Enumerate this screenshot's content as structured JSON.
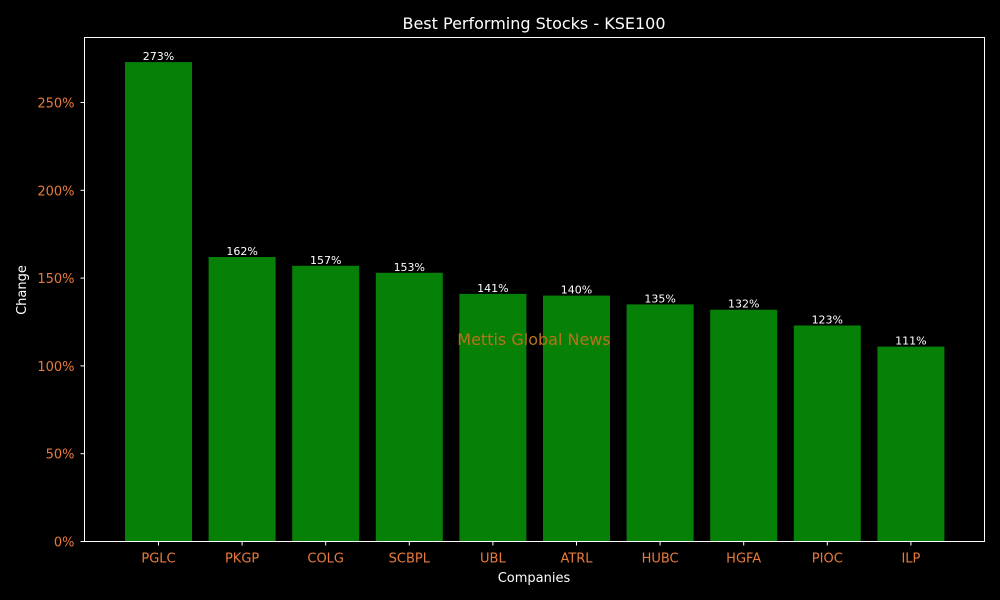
{
  "chart_data": {
    "type": "bar",
    "title": "Best Performing Stocks - KSE100",
    "xlabel": "Companies",
    "ylabel": "Change",
    "categories": [
      "PGLC",
      "PKGP",
      "COLG",
      "SCBPL",
      "UBL",
      "ATRL",
      "HUBC",
      "HGFA",
      "PIOC",
      "ILP"
    ],
    "values": [
      273,
      162,
      157,
      153,
      141,
      140,
      135,
      132,
      123,
      111
    ],
    "data_labels": [
      "273%",
      "162%",
      "157%",
      "153%",
      "141%",
      "140%",
      "135%",
      "132%",
      "123%",
      "111%"
    ],
    "y_ticks": [
      0,
      50,
      100,
      150,
      200,
      250
    ],
    "y_tick_labels": [
      "0%",
      "50%",
      "100%",
      "150%",
      "200%",
      "250%"
    ],
    "ylim": [
      0,
      287
    ],
    "grid": false,
    "legend": "none"
  },
  "watermark": "Mettis Global News",
  "colors": {
    "background": "#000000",
    "bar": "#078007",
    "tick_label": "#e87a3a",
    "text": "#ffffff",
    "axis_line": "#ffffff",
    "watermark": "#b8731a"
  }
}
